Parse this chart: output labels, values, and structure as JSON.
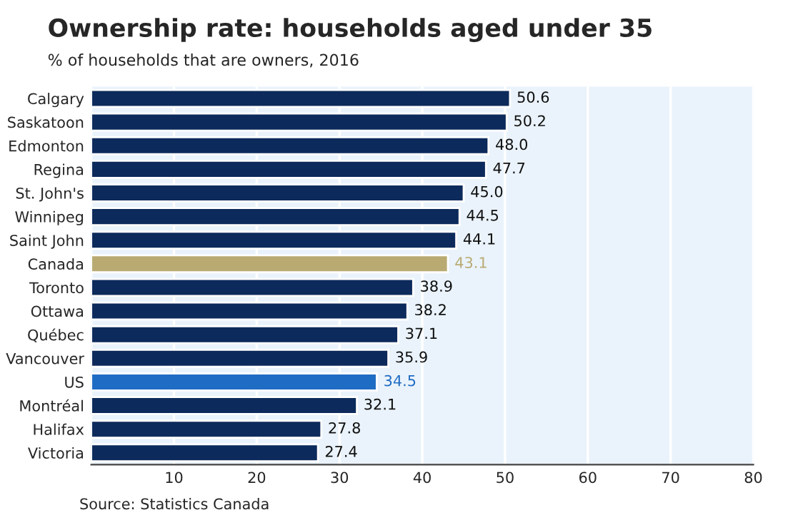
{
  "chart_data": {
    "type": "bar",
    "orientation": "horizontal",
    "title": "Ownership rate: households aged under 35",
    "subtitle": "% of households that are owners, 2016",
    "categories": [
      "Calgary",
      "Saskatoon",
      "Edmonton",
      "Regina",
      "St. John's",
      "Winnipeg",
      "Saint John",
      "Canada",
      "Toronto",
      "Ottawa",
      "Québec",
      "Vancouver",
      "US",
      "Montréal",
      "Halifax",
      "Victoria"
    ],
    "values": [
      50.6,
      50.2,
      48.0,
      47.7,
      45.0,
      44.5,
      44.1,
      43.1,
      38.9,
      38.2,
      37.1,
      35.9,
      34.5,
      32.1,
      27.8,
      27.4
    ],
    "colors": [
      "#0c2a5b",
      "#0c2a5b",
      "#0c2a5b",
      "#0c2a5b",
      "#0c2a5b",
      "#0c2a5b",
      "#0c2a5b",
      "#b9aa72",
      "#0c2a5b",
      "#0c2a5b",
      "#0c2a5b",
      "#0c2a5b",
      "#1f6cc4",
      "#0c2a5b",
      "#0c2a5b",
      "#0c2a5b"
    ],
    "value_labels": [
      "50.6",
      "50.2",
      "48.0",
      "47.7",
      "45.0",
      "44.5",
      "44.1",
      "43.1",
      "38.9",
      "38.2",
      "37.1",
      "35.9",
      "34.5",
      "32.1",
      "27.8",
      "27.4"
    ],
    "xlim": [
      0,
      80
    ],
    "xticks": [
      {
        "value": 0,
        "label": null
      },
      10,
      20,
      30,
      40,
      50,
      60,
      70,
      80
    ],
    "grid": "x",
    "annotations": [
      "Source: Statistics Canada"
    ]
  }
}
